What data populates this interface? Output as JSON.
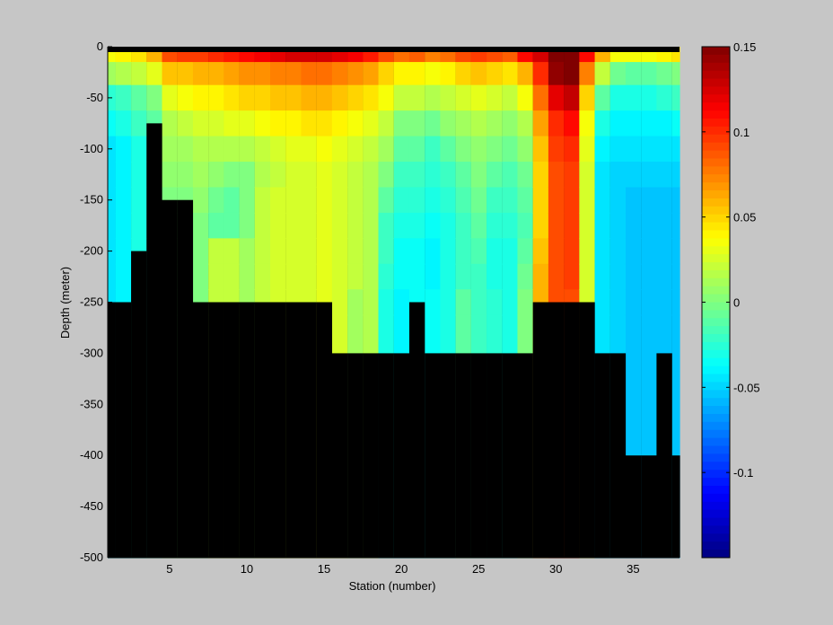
{
  "chart_data": {
    "type": "heatmap",
    "title": "",
    "xlabel": "Station (number)",
    "ylabel": "Depth (meter)",
    "xlim": [
      1,
      38
    ],
    "ylim": [
      -500,
      0
    ],
    "x_ticks": [
      5,
      10,
      15,
      20,
      25,
      30,
      35
    ],
    "y_ticks": [
      0,
      -50,
      -100,
      -150,
      -200,
      -250,
      -300,
      -350,
      -400,
      -450,
      -500
    ],
    "colorbar": {
      "colormap": "jet",
      "clim": [
        -0.15,
        0.15
      ],
      "ticks": [
        0.15,
        0.1,
        0.05,
        0,
        -0.05,
        -0.1
      ],
      "tick_labels": [
        "0.15",
        "0.1",
        "0.05",
        "0",
        "-0.05",
        "-0.1"
      ]
    },
    "mask_color": "#000000",
    "depth_levels": [
      -5,
      -25,
      -50,
      -75,
      -100,
      -125,
      -150,
      -175,
      -200,
      -225,
      -250,
      -275
    ],
    "bottom_depth_by_station": [
      -250,
      -250,
      -200,
      -75,
      -150,
      -150,
      -250,
      -250,
      -250,
      -250,
      -250,
      -250,
      -250,
      -250,
      -250,
      -300,
      -300,
      -300,
      -300,
      -300,
      -250,
      -300,
      -300,
      -300,
      -300,
      -300,
      -300,
      -300,
      -250,
      -250,
      -250,
      -250,
      -300,
      -300,
      -400,
      -400,
      -300,
      -400
    ],
    "station_profiles": [
      [
        0.035,
        0.01,
        -0.025,
        -0.035,
        -0.045,
        -0.045,
        -0.045,
        -0.045,
        -0.045,
        -0.045,
        -0.045,
        -0.045
      ],
      [
        0.04,
        0.015,
        -0.02,
        -0.03,
        -0.04,
        -0.04,
        -0.04,
        -0.04,
        -0.04,
        -0.04,
        -0.04,
        -0.04
      ],
      [
        0.045,
        0.02,
        -0.01,
        -0.02,
        -0.03,
        -0.03,
        -0.03,
        -0.03,
        -0.03,
        -0.03,
        -0.03,
        -0.03
      ],
      [
        0.06,
        0.03,
        0.0,
        -0.01,
        -0.02,
        -0.02,
        -0.02,
        -0.02,
        -0.02,
        -0.02,
        -0.02,
        -0.02
      ],
      [
        0.09,
        0.055,
        0.03,
        0.015,
        0.01,
        0.005,
        0.0,
        0.0,
        0.0,
        0.0,
        0.0,
        0.0
      ],
      [
        0.095,
        0.055,
        0.035,
        0.02,
        0.01,
        0.005,
        0.0,
        0.0,
        0.0,
        0.0,
        0.0,
        0.0
      ],
      [
        0.095,
        0.06,
        0.04,
        0.025,
        0.015,
        0.01,
        0.005,
        0.0,
        0.0,
        0.0,
        0.0,
        0.0
      ],
      [
        0.1,
        0.06,
        0.04,
        0.025,
        0.015,
        0.005,
        -0.005,
        -0.01,
        0.02,
        0.02,
        0.02,
        0.02
      ],
      [
        0.105,
        0.065,
        0.045,
        0.03,
        0.015,
        0.0,
        -0.01,
        -0.01,
        0.02,
        0.02,
        0.02,
        0.02
      ],
      [
        0.11,
        0.07,
        0.05,
        0.03,
        0.015,
        0.0,
        0.0,
        0.0,
        0.01,
        0.01,
        0.01,
        0.01
      ],
      [
        0.115,
        0.07,
        0.05,
        0.035,
        0.02,
        0.015,
        0.02,
        0.02,
        0.02,
        0.02,
        0.02,
        0.02
      ],
      [
        0.12,
        0.075,
        0.055,
        0.04,
        0.025,
        0.02,
        0.025,
        0.025,
        0.025,
        0.025,
        0.025,
        0.025
      ],
      [
        0.125,
        0.075,
        0.055,
        0.04,
        0.03,
        0.025,
        0.025,
        0.025,
        0.025,
        0.025,
        0.025,
        0.025
      ],
      [
        0.125,
        0.08,
        0.06,
        0.045,
        0.03,
        0.025,
        0.025,
        0.025,
        0.025,
        0.025,
        0.025,
        0.025
      ],
      [
        0.125,
        0.08,
        0.06,
        0.045,
        0.035,
        0.03,
        0.03,
        0.03,
        0.03,
        0.03,
        0.03,
        0.03
      ],
      [
        0.12,
        0.075,
        0.055,
        0.04,
        0.03,
        0.025,
        0.025,
        0.025,
        0.025,
        0.025,
        0.025,
        0.025
      ],
      [
        0.115,
        0.07,
        0.05,
        0.035,
        0.025,
        0.02,
        0.02,
        0.02,
        0.02,
        0.02,
        0.01,
        0.01
      ],
      [
        0.105,
        0.065,
        0.045,
        0.03,
        0.02,
        0.015,
        0.015,
        0.015,
        0.015,
        0.015,
        0.015,
        0.015
      ],
      [
        0.09,
        0.05,
        0.035,
        0.02,
        0.01,
        0.0,
        -0.01,
        -0.02,
        -0.02,
        -0.025,
        -0.03,
        -0.03
      ],
      [
        0.08,
        0.04,
        0.02,
        0.0,
        -0.01,
        -0.02,
        -0.025,
        -0.03,
        -0.035,
        -0.035,
        -0.04,
        -0.04
      ],
      [
        0.085,
        0.04,
        0.02,
        0.0,
        -0.01,
        -0.02,
        -0.025,
        -0.03,
        -0.035,
        -0.035,
        -0.035,
        -0.035
      ],
      [
        0.075,
        0.035,
        0.015,
        -0.005,
        -0.02,
        -0.025,
        -0.03,
        -0.035,
        -0.04,
        -0.04,
        -0.035,
        -0.035
      ],
      [
        0.08,
        0.04,
        0.02,
        0.005,
        -0.01,
        -0.02,
        -0.025,
        -0.03,
        -0.03,
        -0.03,
        -0.03,
        -0.03
      ],
      [
        0.09,
        0.05,
        0.025,
        0.01,
        0.0,
        -0.01,
        -0.015,
        -0.02,
        -0.02,
        -0.02,
        -0.01,
        -0.01
      ],
      [
        0.095,
        0.055,
        0.03,
        0.015,
        0.005,
        0.0,
        -0.005,
        -0.01,
        -0.015,
        -0.02,
        -0.02,
        -0.02
      ],
      [
        0.09,
        0.05,
        0.025,
        0.01,
        0.0,
        -0.01,
        -0.02,
        -0.025,
        -0.03,
        -0.03,
        -0.025,
        -0.025
      ],
      [
        0.085,
        0.045,
        0.02,
        0.005,
        -0.005,
        -0.015,
        -0.02,
        -0.025,
        -0.03,
        -0.03,
        -0.03,
        -0.03
      ],
      [
        0.11,
        0.06,
        0.035,
        0.015,
        0.005,
        -0.005,
        -0.01,
        -0.015,
        -0.01,
        -0.005,
        0.0,
        0.0
      ],
      [
        0.125,
        0.1,
        0.08,
        0.065,
        0.055,
        0.05,
        0.05,
        0.05,
        0.055,
        0.06,
        0.06,
        0.06
      ],
      [
        0.15,
        0.145,
        0.12,
        0.1,
        0.095,
        0.09,
        0.09,
        0.09,
        0.09,
        0.09,
        0.09,
        0.09
      ],
      [
        0.15,
        0.15,
        0.13,
        0.11,
        0.1,
        0.095,
        0.095,
        0.095,
        0.095,
        0.095,
        0.09,
        0.09
      ],
      [
        0.11,
        0.075,
        0.05,
        0.035,
        0.03,
        0.025,
        0.025,
        0.025,
        0.025,
        0.025,
        0.025,
        0.025
      ],
      [
        0.06,
        0.02,
        -0.01,
        -0.03,
        -0.04,
        -0.045,
        -0.045,
        -0.045,
        -0.045,
        -0.045,
        -0.045,
        -0.045
      ],
      [
        0.035,
        -0.005,
        -0.03,
        -0.04,
        -0.045,
        -0.05,
        -0.05,
        -0.05,
        -0.05,
        -0.05,
        -0.05,
        -0.05
      ],
      [
        0.035,
        -0.01,
        -0.03,
        -0.04,
        -0.045,
        -0.05,
        -0.055,
        -0.055,
        -0.055,
        -0.055,
        -0.055,
        -0.055
      ],
      [
        0.035,
        -0.01,
        -0.03,
        -0.04,
        -0.045,
        -0.05,
        -0.055,
        -0.055,
        -0.055,
        -0.055,
        -0.055,
        -0.055
      ],
      [
        0.04,
        -0.005,
        -0.025,
        -0.04,
        -0.045,
        -0.05,
        -0.055,
        -0.055,
        -0.055,
        -0.055,
        -0.055,
        -0.055
      ],
      [
        0.045,
        0.0,
        -0.02,
        -0.035,
        -0.045,
        -0.05,
        -0.055,
        -0.055,
        -0.055,
        -0.055,
        -0.055,
        -0.055
      ]
    ]
  }
}
